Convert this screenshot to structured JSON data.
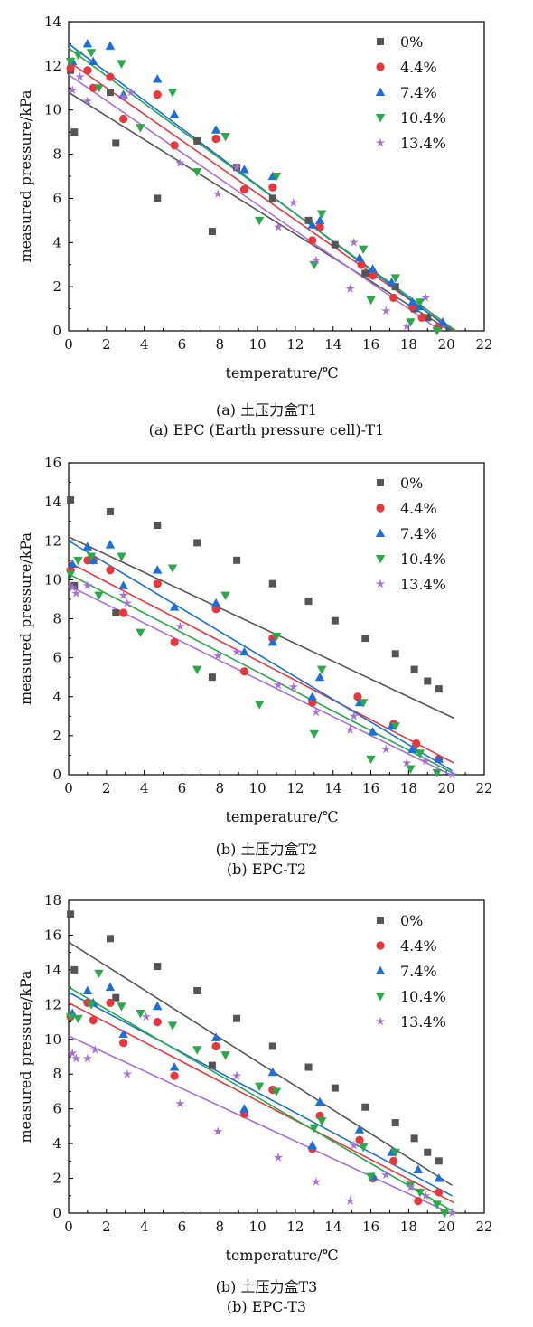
{
  "chart_data": [
    {
      "type": "scatter",
      "xlabel": "temperature/℃",
      "ylabel": "measured pressure/kPa",
      "xlim": [
        0,
        22
      ],
      "ylim": [
        0,
        14
      ],
      "xticks": [
        "0",
        "2",
        "4",
        "6",
        "8",
        "10",
        "12",
        "14",
        "16",
        "18",
        "20",
        "22"
      ],
      "yticks": [
        "0",
        "2",
        "4",
        "6",
        "8",
        "10",
        "12",
        "14"
      ],
      "legend_position": "top-right",
      "grid": false,
      "caption_cn": "(a) 土压力盒T1",
      "caption_en": "(a) EPC (Earth pressure cell)-T1",
      "series": [
        {
          "name": "0%",
          "color": "#555555",
          "marker": "square",
          "x": [
            0.1,
            0.3,
            2.2,
            2.5,
            4.7,
            6.8,
            7.6,
            8.9,
            10.8,
            12.7,
            14.1,
            15.7,
            17.3,
            18.3,
            19.0
          ],
          "y": [
            11.8,
            9.0,
            10.8,
            8.5,
            6.0,
            8.6,
            4.5,
            7.4,
            6.0,
            5.0,
            3.9,
            2.6,
            2.0,
            1.0,
            0.6
          ],
          "fit": [
            [
              0,
              10.8
            ],
            [
              20.2,
              0
            ]
          ]
        },
        {
          "name": "4.4%",
          "color": "#e8383d",
          "marker": "circle",
          "x": [
            0.1,
            1.0,
            1.3,
            2.2,
            2.9,
            4.7,
            5.6,
            7.8,
            9.3,
            10.8,
            12.9,
            13.3,
            15.5,
            16.1,
            17.2,
            18.2,
            18.7,
            19.6
          ],
          "y": [
            11.9,
            11.8,
            11.0,
            11.5,
            9.6,
            10.7,
            8.4,
            8.7,
            6.4,
            6.5,
            4.1,
            4.7,
            3.0,
            2.5,
            1.5,
            1.1,
            0.6,
            0.2
          ],
          "fit": [
            [
              0,
              12.2
            ],
            [
              20.4,
              0
            ]
          ]
        },
        {
          "name": "7.4%",
          "color": "#1a6fd9",
          "marker": "triangle-up",
          "x": [
            0.2,
            1.0,
            1.3,
            2.2,
            2.9,
            4.7,
            5.6,
            7.8,
            9.3,
            10.8,
            12.9,
            13.3,
            15.4,
            16.1,
            17.1,
            18.2,
            18.6,
            19.8
          ],
          "y": [
            12.2,
            13.0,
            12.2,
            12.9,
            10.7,
            11.4,
            9.8,
            9.1,
            7.3,
            7.0,
            4.8,
            5.0,
            3.3,
            2.8,
            2.2,
            1.3,
            1.1,
            0.4
          ],
          "fit": [
            [
              0,
              13.0
            ],
            [
              20.3,
              0
            ]
          ]
        },
        {
          "name": "10.4%",
          "color": "#2aa84a",
          "marker": "triangle-down",
          "x": [
            0.1,
            0.5,
            1.2,
            1.6,
            2.8,
            3.8,
            5.5,
            6.8,
            8.3,
            10.1,
            11.0,
            13.0,
            13.4,
            15.6,
            16.0,
            17.3,
            18.1,
            18.6,
            19.5
          ],
          "y": [
            12.2,
            12.5,
            12.6,
            11.0,
            12.1,
            9.2,
            10.8,
            7.2,
            8.8,
            5.0,
            7.0,
            3.0,
            5.3,
            3.7,
            1.4,
            2.4,
            0.4,
            1.3,
            0.0
          ],
          "fit": [
            [
              0,
              12.8
            ],
            [
              20.5,
              0
            ]
          ]
        },
        {
          "name": "13.4%",
          "color": "#a86fd9",
          "marker": "star",
          "x": [
            0.2,
            0.6,
            1.0,
            2.9,
            3.3,
            5.9,
            7.9,
            8.9,
            11.1,
            11.9,
            13.1,
            14.9,
            15.1,
            16.8,
            17.9,
            18.9
          ],
          "y": [
            10.9,
            11.5,
            10.4,
            10.6,
            10.8,
            7.6,
            6.2,
            7.4,
            4.7,
            5.8,
            3.2,
            1.9,
            4.0,
            0.9,
            0.2,
            1.5
          ],
          "fit": [
            [
              0,
              11.6
            ],
            [
              19.7,
              0
            ]
          ]
        }
      ]
    },
    {
      "type": "scatter",
      "xlabel": "temperature/℃",
      "ylabel": "measured pressure/kPa",
      "xlim": [
        0,
        22
      ],
      "ylim": [
        0,
        16
      ],
      "xticks": [
        "0",
        "2",
        "4",
        "6",
        "8",
        "10",
        "12",
        "14",
        "16",
        "18",
        "20",
        "22"
      ],
      "yticks": [
        "0",
        "2",
        "4",
        "6",
        "8",
        "10",
        "12",
        "14",
        "16"
      ],
      "legend_position": "top-right",
      "grid": false,
      "caption_cn": "(b) 土压力盒T2",
      "caption_en": "(b) EPC-T2",
      "series": [
        {
          "name": "0%",
          "color": "#555555",
          "marker": "square",
          "x": [
            0.1,
            0.3,
            2.2,
            2.5,
            4.7,
            6.8,
            7.6,
            8.9,
            10.8,
            12.7,
            14.1,
            15.7,
            17.3,
            18.3,
            19.0,
            19.6
          ],
          "y": [
            14.1,
            9.7,
            13.5,
            8.3,
            12.8,
            11.9,
            5.0,
            11.0,
            9.8,
            8.9,
            7.9,
            7.0,
            6.2,
            5.4,
            4.8,
            4.4
          ],
          "fit": [
            [
              0,
              12.2
            ],
            [
              20.4,
              2.9
            ]
          ]
        },
        {
          "name": "4.4%",
          "color": "#e8383d",
          "marker": "circle",
          "x": [
            0.1,
            1.0,
            1.3,
            2.2,
            2.9,
            4.7,
            5.6,
            7.8,
            9.3,
            10.8,
            12.9,
            15.3,
            17.2,
            18.4,
            19.6
          ],
          "y": [
            10.5,
            11.0,
            11.0,
            10.5,
            8.3,
            9.8,
            6.8,
            8.5,
            5.3,
            7.0,
            3.7,
            4.0,
            2.6,
            1.6,
            0.8
          ],
          "fit": [
            [
              0,
              10.9
            ],
            [
              20.4,
              0.6
            ]
          ]
        },
        {
          "name": "7.4%",
          "color": "#1a6fd9",
          "marker": "triangle-up",
          "x": [
            0.2,
            1.0,
            1.3,
            2.2,
            2.9,
            4.7,
            5.6,
            7.8,
            9.3,
            10.8,
            12.9,
            13.3,
            15.4,
            16.1,
            17.1,
            18.2,
            19.6
          ],
          "y": [
            10.8,
            11.7,
            11.0,
            11.8,
            9.7,
            10.5,
            8.6,
            8.8,
            6.3,
            6.8,
            4.0,
            5.0,
            3.7,
            2.2,
            2.5,
            1.3,
            0.8
          ],
          "fit": [
            [
              0,
              12.0
            ],
            [
              20.3,
              0.2
            ]
          ]
        },
        {
          "name": "10.4%",
          "color": "#2aa84a",
          "marker": "triangle-down",
          "x": [
            0.1,
            0.5,
            1.2,
            1.6,
            2.8,
            3.8,
            5.5,
            6.8,
            8.3,
            10.1,
            11.0,
            13.0,
            13.4,
            15.6,
            16.0,
            17.3,
            18.1,
            18.6,
            19.5
          ],
          "y": [
            10.3,
            11.0,
            11.2,
            9.2,
            11.2,
            7.3,
            10.6,
            5.4,
            9.2,
            3.6,
            7.1,
            2.1,
            5.4,
            3.7,
            0.8,
            2.5,
            0.3,
            1.1,
            0.1
          ],
          "fit": [
            [
              0,
              10.3
            ],
            [
              20.5,
              0
            ]
          ]
        },
        {
          "name": "13.4%",
          "color": "#a86fd9",
          "marker": "star",
          "x": [
            0.2,
            0.4,
            1.0,
            2.9,
            3.1,
            5.9,
            7.9,
            8.9,
            11.1,
            11.9,
            13.1,
            14.9,
            15.1,
            16.8,
            17.9,
            18.9,
            20.3
          ],
          "y": [
            9.6,
            9.3,
            9.7,
            9.2,
            8.8,
            7.6,
            6.1,
            6.3,
            4.6,
            4.5,
            3.2,
            2.3,
            3.0,
            1.3,
            0.6,
            0.7,
            0.0
          ],
          "fit": [
            [
              0,
              9.7
            ],
            [
              20.2,
              0
            ]
          ]
        }
      ]
    },
    {
      "type": "scatter",
      "xlabel": "temperature/℃",
      "ylabel": "measured pressure/kPa",
      "xlim": [
        0,
        22
      ],
      "ylim": [
        0,
        18
      ],
      "xticks": [
        "0",
        "2",
        "4",
        "6",
        "8",
        "10",
        "12",
        "14",
        "16",
        "18",
        "20",
        "22"
      ],
      "yticks": [
        "0",
        "2",
        "4",
        "6",
        "8",
        "10",
        "12",
        "14",
        "16",
        "18"
      ],
      "legend_position": "top-right",
      "grid": false,
      "caption_cn": "(b) 土压力盒T3",
      "caption_en": "(b) EPC-T3",
      "series": [
        {
          "name": "0%",
          "color": "#555555",
          "marker": "square",
          "x": [
            0.1,
            0.3,
            2.2,
            2.5,
            4.7,
            6.8,
            7.6,
            8.9,
            10.8,
            12.7,
            14.1,
            15.7,
            17.3,
            18.3,
            19.0,
            19.6
          ],
          "y": [
            17.2,
            14.0,
            15.8,
            12.4,
            14.2,
            12.8,
            8.5,
            11.2,
            9.6,
            8.4,
            7.2,
            6.1,
            5.2,
            4.3,
            3.5,
            3.0
          ],
          "fit": [
            [
              0,
              15.6
            ],
            [
              20.3,
              1.6
            ]
          ]
        },
        {
          "name": "4.4%",
          "color": "#e8383d",
          "marker": "circle",
          "x": [
            0.1,
            1.0,
            1.3,
            2.2,
            2.9,
            4.7,
            5.6,
            7.8,
            9.3,
            10.8,
            12.9,
            13.3,
            15.4,
            16.1,
            17.2,
            18.5,
            19.6
          ],
          "y": [
            11.3,
            12.1,
            11.1,
            12.1,
            9.8,
            11.0,
            7.9,
            9.6,
            5.7,
            7.1,
            3.7,
            5.6,
            4.2,
            2.0,
            3.0,
            0.7,
            1.2
          ],
          "fit": [
            [
              0,
              12.1
            ],
            [
              20.4,
              0.6
            ]
          ]
        },
        {
          "name": "7.4%",
          "color": "#1a6fd9",
          "marker": "triangle-up",
          "x": [
            0.2,
            1.0,
            1.3,
            2.2,
            2.9,
            4.7,
            5.6,
            7.8,
            9.3,
            10.8,
            12.9,
            13.3,
            15.4,
            16.1,
            17.1,
            18.5,
            19.6
          ],
          "y": [
            11.5,
            12.8,
            12.1,
            13.0,
            10.3,
            11.9,
            8.4,
            10.1,
            6.0,
            8.1,
            3.9,
            6.4,
            4.8,
            2.1,
            3.5,
            2.5,
            2.0
          ],
          "fit": [
            [
              0,
              12.7
            ],
            [
              20.3,
              1.0
            ]
          ]
        },
        {
          "name": "10.4%",
          "color": "#2aa84a",
          "marker": "triangle-down",
          "x": [
            0.1,
            0.5,
            1.2,
            1.6,
            2.8,
            3.8,
            5.5,
            6.8,
            8.3,
            10.1,
            11.0,
            13.0,
            13.4,
            15.6,
            16.0,
            17.3,
            18.1,
            18.6,
            19.5,
            19.9
          ],
          "y": [
            11.3,
            11.2,
            12.0,
            13.8,
            11.9,
            11.5,
            10.8,
            9.4,
            9.1,
            7.3,
            7.0,
            4.9,
            5.3,
            3.8,
            2.1,
            3.5,
            1.6,
            1.2,
            0.5,
            0.0
          ],
          "fit": [
            [
              0,
              13.0
            ],
            [
              20.5,
              0
            ]
          ]
        },
        {
          "name": "13.4%",
          "color": "#a86fd9",
          "marker": "star",
          "x": [
            0.2,
            0.4,
            1.0,
            1.4,
            3.1,
            4.1,
            5.9,
            7.9,
            8.9,
            11.1,
            13.1,
            14.9,
            15.1,
            16.8,
            18.1,
            18.9,
            20.3
          ],
          "y": [
            9.2,
            8.9,
            8.9,
            9.4,
            8.0,
            11.3,
            6.3,
            4.7,
            7.9,
            3.2,
            1.8,
            0.7,
            3.9,
            2.2,
            1.5,
            1.0,
            0.0
          ],
          "fit": [
            [
              0,
              10.2
            ],
            [
              20.2,
              0
            ]
          ]
        }
      ]
    }
  ]
}
